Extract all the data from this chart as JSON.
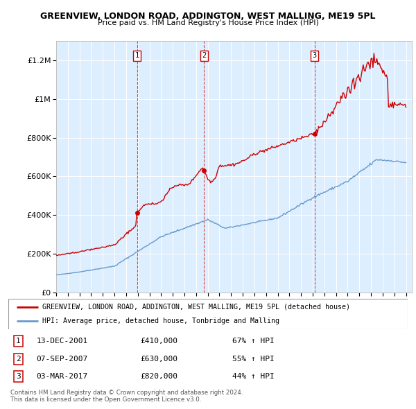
{
  "title1": "GREENVIEW, LONDON ROAD, ADDINGTON, WEST MALLING, ME19 5PL",
  "title2": "Price paid vs. HM Land Registry's House Price Index (HPI)",
  "red_label": "GREENVIEW, LONDON ROAD, ADDINGTON, WEST MALLING, ME19 5PL (detached house)",
  "blue_label": "HPI: Average price, detached house, Tonbridge and Malling",
  "sale1_date": "13-DEC-2001",
  "sale1_price": 410000,
  "sale1_hpi": "67% ↑ HPI",
  "sale2_date": "07-SEP-2007",
  "sale2_price": 630000,
  "sale2_hpi": "55% ↑ HPI",
  "sale3_date": "03-MAR-2017",
  "sale3_price": 820000,
  "sale3_hpi": "44% ↑ HPI",
  "footer": "Contains HM Land Registry data © Crown copyright and database right 2024.\nThis data is licensed under the Open Government Licence v3.0.",
  "red_color": "#cc0000",
  "blue_color": "#6699cc",
  "bg_color": "#ddeeff",
  "ylim": [
    0,
    1300000
  ],
  "sale1_x": 2001.95,
  "sale2_x": 2007.68,
  "sale3_x": 2017.17,
  "xlim_start": 1995,
  "xlim_end": 2025.5
}
